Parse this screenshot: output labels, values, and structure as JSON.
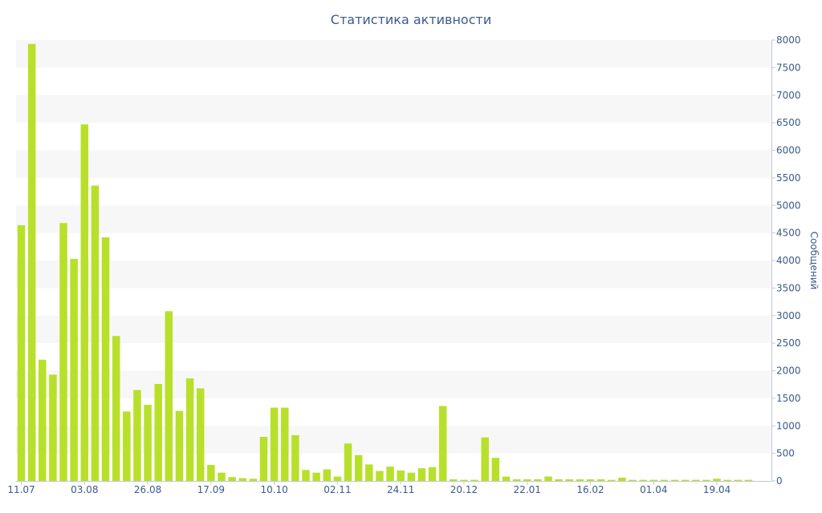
{
  "chart_data": {
    "type": "bar",
    "title": "Статистика активности",
    "ylabel": "Сообщений",
    "xlabel": "",
    "ylim": [
      0,
      8000
    ],
    "y_ticks": [
      0,
      500,
      1000,
      1500,
      2000,
      2500,
      3000,
      3500,
      4000,
      4500,
      5000,
      5500,
      6000,
      6500,
      7000,
      7500,
      8000
    ],
    "y_axis_side": "right",
    "grid": "alternating horizontal bands",
    "x_tick_labels": [
      {
        "label": "11.07",
        "index": 0
      },
      {
        "label": "03.08",
        "index": 6
      },
      {
        "label": "26.08",
        "index": 12
      },
      {
        "label": "17.09",
        "index": 18
      },
      {
        "label": "10.10",
        "index": 24
      },
      {
        "label": "02.11",
        "index": 30
      },
      {
        "label": "24.11",
        "index": 36
      },
      {
        "label": "20.12",
        "index": 42
      },
      {
        "label": "22.01",
        "index": 48
      },
      {
        "label": "16.02",
        "index": 54
      },
      {
        "label": "01.04",
        "index": 60
      },
      {
        "label": "19.04",
        "index": 66
      }
    ],
    "values": [
      4640,
      7930,
      2200,
      1930,
      4680,
      4030,
      6470,
      5360,
      4420,
      2630,
      1260,
      1650,
      1380,
      1760,
      3080,
      1270,
      1860,
      1680,
      290,
      150,
      70,
      50,
      40,
      800,
      1330,
      1330,
      830,
      200,
      150,
      210,
      80,
      680,
      470,
      300,
      180,
      260,
      190,
      150,
      230,
      250,
      1360,
      30,
      20,
      20,
      790,
      420,
      80,
      30,
      30,
      30,
      80,
      30,
      30,
      30,
      30,
      30,
      20,
      60,
      20,
      20,
      20,
      20,
      20,
      20,
      20,
      20,
      40,
      20,
      20,
      20
    ],
    "bar_color": "#b8e02a",
    "axis_color": "#3c5a8a"
  }
}
